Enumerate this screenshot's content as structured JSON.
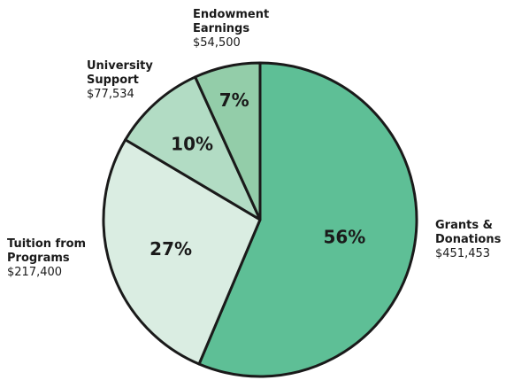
{
  "chart_data": {
    "type": "pie",
    "title": "",
    "slices": [
      {
        "label_lines": [
          "Grants &",
          "Donations"
        ],
        "value": 451453,
        "value_label": "$451,453",
        "percent_label": "56%",
        "color": "#5ebf96"
      },
      {
        "label_lines": [
          "Tuition from",
          "Programs"
        ],
        "value": 217400,
        "value_label": "$217,400",
        "percent_label": "27%",
        "color": "#daede2"
      },
      {
        "label_lines": [
          "University",
          "Support"
        ],
        "value": 77534,
        "value_label": "$77,534",
        "percent_label": "10%",
        "color": "#b2dcc4"
      },
      {
        "label_lines": [
          "Endowment",
          "Earnings"
        ],
        "value": 54500,
        "value_label": "$54,500",
        "percent_label": "7%",
        "color": "#93cda9"
      }
    ],
    "outline_color": "#1a1a1a",
    "legend": "none"
  }
}
